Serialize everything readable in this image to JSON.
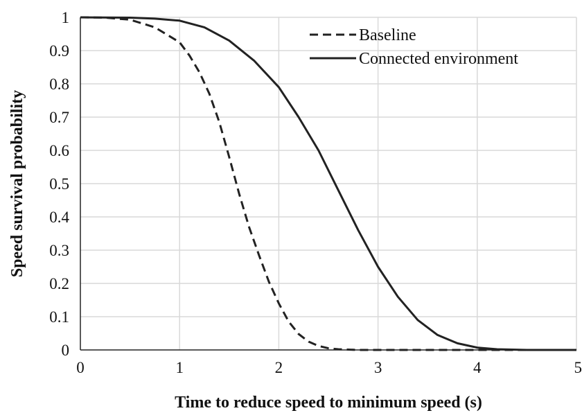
{
  "chart_data": {
    "type": "line",
    "title": "",
    "xlabel": "Time to reduce speed to minimum speed (s)",
    "ylabel": "Speed survival probability",
    "xlim": [
      0,
      5
    ],
    "ylim": [
      0,
      1
    ],
    "xticks": [
      "0",
      "1",
      "2",
      "3",
      "4",
      "5"
    ],
    "yticks": [
      "0",
      "0.1",
      "0.2",
      "0.3",
      "0.4",
      "0.5",
      "0.6",
      "0.7",
      "0.8",
      "0.9",
      "1"
    ],
    "grid": true,
    "legend_position": "top-right",
    "series": [
      {
        "name": "Baseline",
        "style": "dashed",
        "color": "#222222",
        "x": [
          0,
          0.25,
          0.5,
          0.75,
          1.0,
          1.1,
          1.2,
          1.3,
          1.4,
          1.5,
          1.6,
          1.7,
          1.8,
          1.9,
          2.0,
          2.1,
          2.2,
          2.3,
          2.4,
          2.5,
          2.6,
          2.7,
          2.8,
          3.0,
          3.5,
          4.0,
          5.0
        ],
        "y": [
          1.0,
          0.999,
          0.993,
          0.97,
          0.925,
          0.885,
          0.835,
          0.77,
          0.685,
          0.58,
          0.47,
          0.37,
          0.285,
          0.205,
          0.14,
          0.085,
          0.048,
          0.025,
          0.012,
          0.005,
          0.002,
          0.001,
          0.0,
          0.0,
          0.0,
          0.0,
          0.0
        ]
      },
      {
        "name": "Connected environment",
        "style": "solid",
        "color": "#222222",
        "x": [
          0,
          0.5,
          0.75,
          1.0,
          1.25,
          1.5,
          1.75,
          2.0,
          2.2,
          2.4,
          2.6,
          2.8,
          3.0,
          3.2,
          3.4,
          3.6,
          3.8,
          4.0,
          4.2,
          4.5,
          5.0
        ],
        "y": [
          1.0,
          0.999,
          0.996,
          0.99,
          0.97,
          0.93,
          0.87,
          0.79,
          0.7,
          0.6,
          0.48,
          0.36,
          0.25,
          0.16,
          0.09,
          0.045,
          0.02,
          0.007,
          0.002,
          0.0,
          0.0
        ]
      }
    ]
  }
}
